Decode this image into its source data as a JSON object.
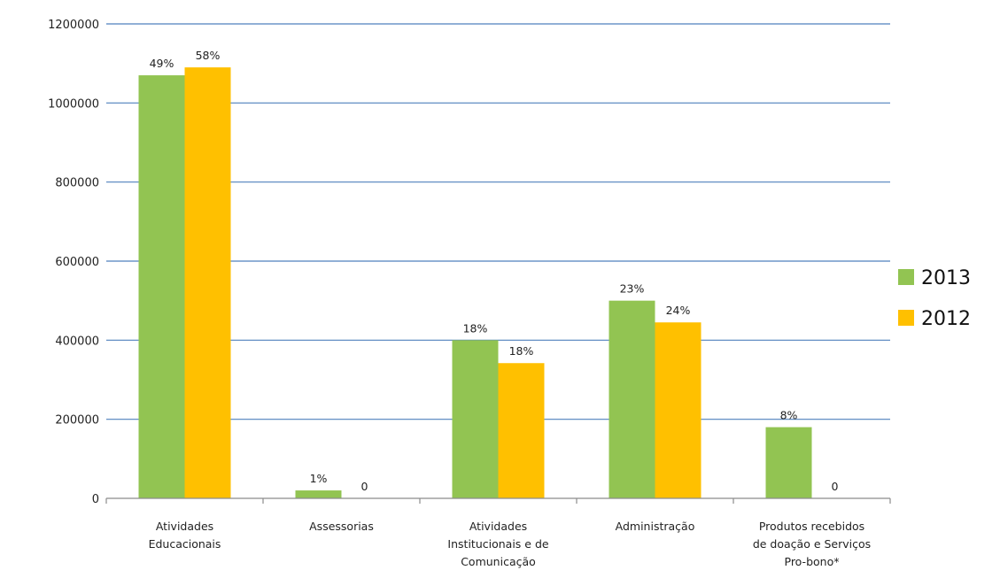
{
  "chart_data": {
    "type": "bar",
    "categories": [
      [
        "Atividades",
        "Educacionais"
      ],
      [
        "Assessorias"
      ],
      [
        "Atividades",
        "Institucionais e de",
        "Comunicação"
      ],
      [
        "Administração"
      ],
      [
        "Produtos recebidos",
        "de doação e Serviços",
        "Pro-bono*"
      ]
    ],
    "series": [
      {
        "name": "2013",
        "color": "#92c452",
        "values": [
          1070000,
          20000,
          400000,
          500000,
          180000
        ],
        "labels": [
          "49%",
          "1%",
          "18%",
          "23%",
          "8%"
        ]
      },
      {
        "name": "2012",
        "color": "#ffc000",
        "values": [
          1090000,
          0,
          342000,
          445000,
          0
        ],
        "labels": [
          "58%",
          "0",
          "18%",
          "24%",
          "0"
        ]
      }
    ],
    "ylim": [
      0,
      1200000
    ],
    "yticks": [
      "0",
      "200000",
      "400000",
      "600000",
      "800000",
      "1000000",
      "1200000"
    ],
    "grid": true,
    "legend_position": "right",
    "gridline_color": "#4f81bd",
    "axis_color": "#8c8c8c"
  }
}
